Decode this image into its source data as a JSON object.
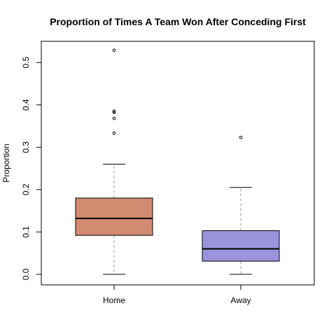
{
  "chart_data": {
    "type": "boxplot",
    "title": "Proportion of Times A Team Won After Conceding First",
    "xlabel": "",
    "ylabel": "Proportion",
    "ylim": [
      -0.025,
      0.55
    ],
    "yticks": [
      "0.0",
      "0.1",
      "0.2",
      "0.3",
      "0.4",
      "0.5"
    ],
    "ytick_values": [
      0.0,
      0.1,
      0.2,
      0.3,
      0.4,
      0.5
    ],
    "grid": false,
    "legend": "none",
    "categories": [
      "Home",
      "Away"
    ],
    "boxes": [
      {
        "category": "Home",
        "whisker_low": 0.0,
        "q1": 0.092,
        "median": 0.132,
        "q3": 0.18,
        "whisker_high": 0.26,
        "outliers": [
          0.333,
          0.368,
          0.382,
          0.385,
          0.529
        ],
        "color": "#D28A70"
      },
      {
        "category": "Away",
        "whisker_low": 0.0,
        "q1": 0.031,
        "median": 0.06,
        "q3": 0.103,
        "whisker_high": 0.205,
        "outliers": [
          0.323
        ],
        "color": "#9B93DC"
      }
    ]
  }
}
